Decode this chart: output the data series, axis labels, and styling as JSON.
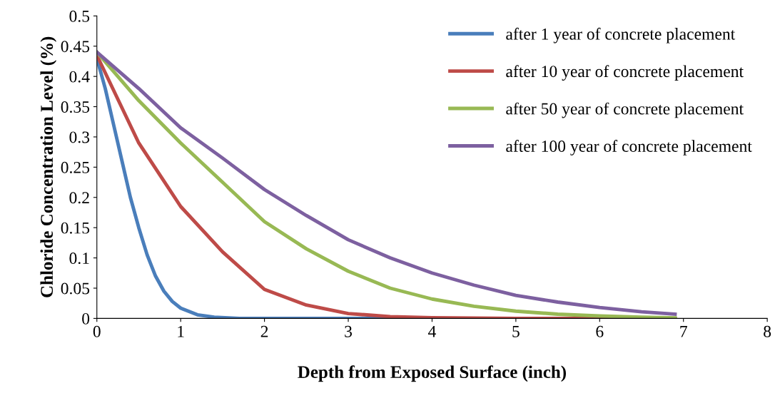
{
  "chart_data": {
    "type": "line",
    "xlabel": "Depth from Exposed Surface (inch)",
    "ylabel": "Chloride Concentration Level (%)",
    "xlim": [
      0,
      8
    ],
    "xticks": [
      0,
      1,
      2,
      3,
      4,
      5,
      6,
      7,
      8
    ],
    "ylim": [
      0,
      0.5
    ],
    "yticks": [
      0,
      0.05,
      0.1,
      0.15,
      0.2,
      0.25,
      0.3,
      0.35,
      0.4,
      0.45,
      0.5
    ],
    "grid": false,
    "legend": "right",
    "marker": "none",
    "line_style": "solid",
    "series": [
      {
        "name": "after 1 year of concrete placement",
        "color": "#4a7ebb",
        "x": [
          0,
          0.1,
          0.2,
          0.3,
          0.4,
          0.5,
          0.6,
          0.7,
          0.8,
          0.9,
          1.0,
          1.2,
          1.4,
          1.7,
          2,
          3,
          4,
          5,
          6,
          6.9
        ],
        "values": [
          0.43,
          0.38,
          0.32,
          0.26,
          0.2,
          0.15,
          0.105,
          0.07,
          0.045,
          0.028,
          0.017,
          0.006,
          0.002,
          0,
          0,
          0,
          0,
          0,
          0,
          0
        ]
      },
      {
        "name": "after 10 year of concrete placement",
        "color": "#be4b48",
        "x": [
          0,
          0.5,
          1,
          1.5,
          2,
          2.5,
          3,
          3.5,
          4,
          5,
          6,
          6.9
        ],
        "values": [
          0.435,
          0.29,
          0.185,
          0.11,
          0.048,
          0.022,
          0.008,
          0.003,
          0.001,
          0,
          0,
          0
        ]
      },
      {
        "name": "after 50 year of concrete placement",
        "color": "#98b954",
        "x": [
          0,
          0.5,
          1,
          1.5,
          2,
          2.5,
          3,
          3.5,
          4,
          4.5,
          5,
          5.5,
          6,
          6.5,
          6.9
        ],
        "values": [
          0.44,
          0.36,
          0.29,
          0.225,
          0.16,
          0.115,
          0.078,
          0.05,
          0.032,
          0.02,
          0.012,
          0.007,
          0.004,
          0.002,
          0.001
        ]
      },
      {
        "name": "after 100 year of concrete placement",
        "color": "#7d60a0",
        "x": [
          0,
          0.5,
          1,
          1.5,
          2,
          2.5,
          3,
          3.5,
          4,
          4.5,
          5,
          5.5,
          6,
          6.5,
          6.9
        ],
        "values": [
          0.44,
          0.38,
          0.315,
          0.265,
          0.213,
          0.17,
          0.13,
          0.1,
          0.075,
          0.055,
          0.038,
          0.027,
          0.018,
          0.011,
          0.007
        ]
      }
    ]
  }
}
